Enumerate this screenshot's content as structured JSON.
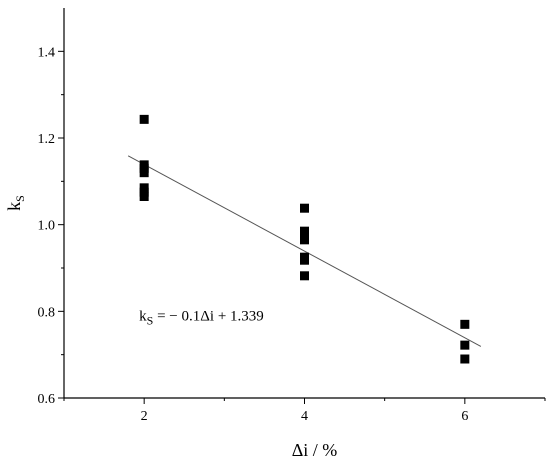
{
  "chart_data": {
    "type": "scatter",
    "title": "",
    "xlabel": "Δi / %",
    "ylabel": {
      "main": "k",
      "sub": "S"
    },
    "xlim": [
      1.0,
      7.0
    ],
    "ylim": [
      0.6,
      1.5
    ],
    "xticks": [
      2,
      4,
      6
    ],
    "yticks": [
      0.6,
      0.8,
      1.0,
      1.2,
      1.4
    ],
    "xtick_labels": [
      "2",
      "4",
      "6"
    ],
    "ytick_labels": [
      "0.6",
      "0.8",
      "1.0",
      "1.2",
      "1.4"
    ],
    "grid": false,
    "legend": "none",
    "series": [
      {
        "marker": "square",
        "color": "#000000",
        "points": [
          {
            "x": 2,
            "y": 1.243
          },
          {
            "x": 2,
            "y": 1.138
          },
          {
            "x": 2,
            "y": 1.13
          },
          {
            "x": 2,
            "y": 1.12
          },
          {
            "x": 2,
            "y": 1.085
          },
          {
            "x": 2,
            "y": 1.075
          },
          {
            "x": 2,
            "y": 1.065
          },
          {
            "x": 4,
            "y": 1.038
          },
          {
            "x": 4,
            "y": 0.985
          },
          {
            "x": 4,
            "y": 0.975
          },
          {
            "x": 4,
            "y": 0.965
          },
          {
            "x": 4,
            "y": 0.925
          },
          {
            "x": 4,
            "y": 0.918
          },
          {
            "x": 4,
            "y": 0.882
          },
          {
            "x": 6,
            "y": 0.77
          },
          {
            "x": 6,
            "y": 0.722
          },
          {
            "x": 6,
            "y": 0.69
          }
        ]
      }
    ],
    "fit_line": {
      "slope": -0.1,
      "intercept": 1.339,
      "x_start": 1.8,
      "x_end": 6.2,
      "color": "#555555"
    },
    "annotations": [
      {
        "main": "k",
        "sub": "S",
        "rest": " = − 0.1Δi + 1.339",
        "x": 2.0,
        "y": 0.79
      }
    ]
  }
}
